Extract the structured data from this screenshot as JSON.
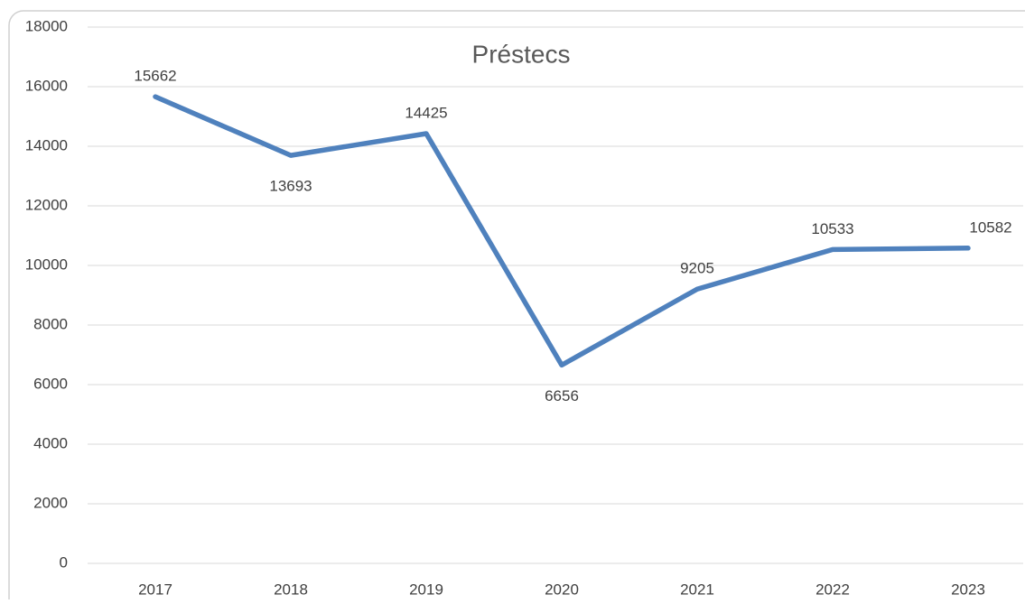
{
  "chart_data": {
    "type": "line",
    "title": "Préstecs",
    "categories": [
      "2017",
      "2018",
      "2019",
      "2020",
      "2021",
      "2022",
      "2023"
    ],
    "series": [
      {
        "name": "Préstecs",
        "color": "#4f81bd",
        "values": [
          15662,
          13693,
          14425,
          6656,
          9205,
          10533,
          10582
        ]
      }
    ],
    "ylim": [
      0,
      18000
    ],
    "yticks": [
      0,
      2000,
      4000,
      6000,
      8000,
      10000,
      12000,
      14000,
      16000,
      18000
    ],
    "grid": true
  }
}
